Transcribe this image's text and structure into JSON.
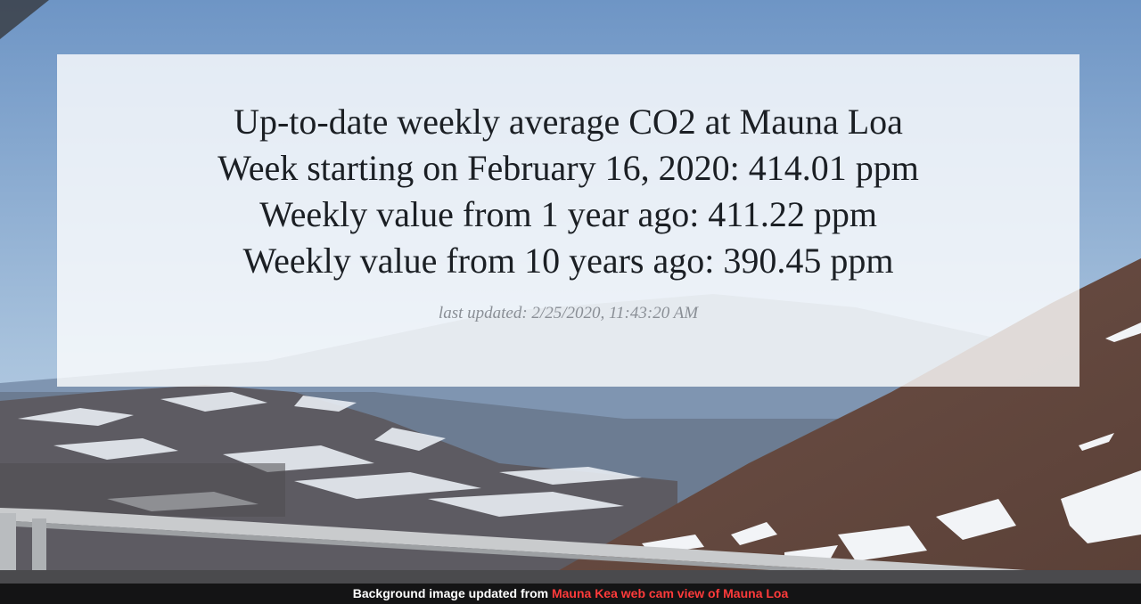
{
  "panel": {
    "lines": [
      "Up-to-date weekly average CO2 at Mauna Loa",
      "Week starting on February 16, 2020: 414.01 ppm",
      "Weekly value from 1 year ago: 411.22 ppm",
      "Weekly value from 10 years ago: 390.45 ppm"
    ],
    "last_updated": "last updated: 2/25/2020, 11:43:20 AM"
  },
  "footer": {
    "prefix": "Background image updated from",
    "link_text": "Mauna Kea web cam view of Mauna Loa"
  },
  "colors": {
    "sky": "#7a9fc9",
    "footer_link": "#ff3b3b",
    "panel_text": "#1b1f24"
  }
}
